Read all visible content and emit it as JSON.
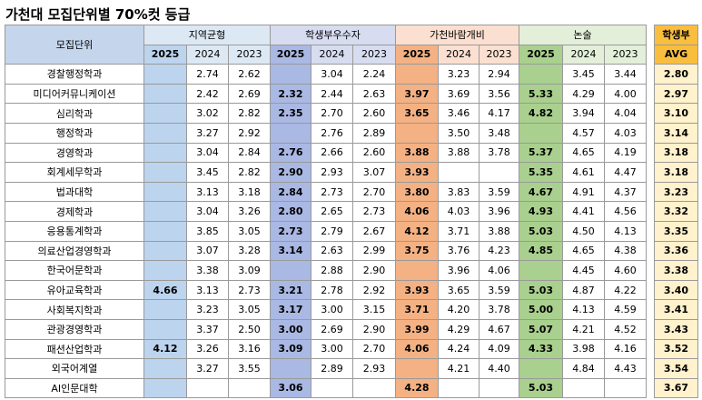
{
  "title": "가천대 모집단위별 70%컷 등급",
  "header": {
    "unit": "모집단위",
    "groups": [
      "지역균형",
      "학생부우수자",
      "가천바람개비",
      "논술"
    ],
    "years": [
      "2025",
      "2024",
      "2023"
    ],
    "avg_line1": "학생부",
    "avg_line2": "AVG"
  },
  "colors": {
    "지역균형": "#bcd4ee",
    "학생부우수자": "#aab8e4",
    "가천바람개비": "#f4b183",
    "논술": "#a9d08e",
    "avg_header": "#f9be3e",
    "avg_cells": "#fff2cc"
  },
  "rows": [
    {
      "name": "경찰행정학과",
      "v": [
        "",
        "2.74",
        "2.62",
        "",
        "3.04",
        "2.24",
        "",
        "3.23",
        "2.94",
        "",
        "3.45",
        "3.44"
      ],
      "avg": "2.80"
    },
    {
      "name": "미디어커뮤니케이션",
      "v": [
        "",
        "2.42",
        "2.69",
        "2.32",
        "2.44",
        "2.63",
        "3.97",
        "3.69",
        "3.56",
        "5.33",
        "4.29",
        "4.00"
      ],
      "avg": "2.97"
    },
    {
      "name": "심리학과",
      "v": [
        "",
        "3.02",
        "2.82",
        "2.35",
        "2.70",
        "2.60",
        "3.65",
        "3.46",
        "4.17",
        "4.82",
        "3.94",
        "4.04"
      ],
      "avg": "3.10"
    },
    {
      "name": "행정학과",
      "v": [
        "",
        "3.27",
        "2.92",
        "",
        "2.76",
        "2.89",
        "",
        "3.50",
        "3.48",
        "",
        "4.57",
        "4.03"
      ],
      "avg": "3.14"
    },
    {
      "name": "경영학과",
      "v": [
        "",
        "3.04",
        "2.84",
        "2.76",
        "2.66",
        "2.60",
        "3.88",
        "3.88",
        "3.78",
        "5.37",
        "4.65",
        "4.19"
      ],
      "avg": "3.18"
    },
    {
      "name": "회계세무학과",
      "v": [
        "",
        "3.45",
        "2.82",
        "2.90",
        "2.93",
        "3.07",
        "3.93",
        "",
        "",
        "5.35",
        "4.61",
        "4.47"
      ],
      "avg": "3.18"
    },
    {
      "name": "법과대학",
      "v": [
        "",
        "3.13",
        "3.18",
        "2.84",
        "2.73",
        "2.70",
        "3.80",
        "3.83",
        "3.59",
        "4.67",
        "4.91",
        "4.37"
      ],
      "avg": "3.23"
    },
    {
      "name": "경제학과",
      "v": [
        "",
        "3.04",
        "3.26",
        "2.80",
        "2.65",
        "2.73",
        "4.06",
        "4.03",
        "3.96",
        "4.93",
        "4.41",
        "4.56"
      ],
      "avg": "3.32"
    },
    {
      "name": "응용통계학과",
      "v": [
        "",
        "3.85",
        "3.05",
        "2.73",
        "2.79",
        "2.67",
        "4.12",
        "3.71",
        "3.88",
        "5.03",
        "4.50",
        "4.13"
      ],
      "avg": "3.35"
    },
    {
      "name": "의료산업경영학과",
      "v": [
        "",
        "3.07",
        "3.28",
        "3.14",
        "2.63",
        "2.99",
        "3.75",
        "3.76",
        "4.23",
        "4.85",
        "4.65",
        "4.38"
      ],
      "avg": "3.36"
    },
    {
      "name": "한국어문학과",
      "v": [
        "",
        "3.38",
        "3.09",
        "",
        "2.88",
        "2.90",
        "",
        "3.96",
        "4.06",
        "",
        "4.45",
        "4.60"
      ],
      "avg": "3.38"
    },
    {
      "name": "유아교육학과",
      "v": [
        "4.66",
        "3.13",
        "2.73",
        "3.21",
        "2.78",
        "2.92",
        "3.93",
        "3.65",
        "3.59",
        "5.03",
        "4.87",
        "4.22"
      ],
      "avg": "3.40"
    },
    {
      "name": "사회복지학과",
      "v": [
        "",
        "3.23",
        "3.05",
        "3.17",
        "3.00",
        "3.15",
        "3.71",
        "4.20",
        "3.78",
        "5.00",
        "4.13",
        "4.59"
      ],
      "avg": "3.41"
    },
    {
      "name": "관광경영학과",
      "v": [
        "",
        "3.37",
        "2.50",
        "3.00",
        "2.69",
        "2.90",
        "3.99",
        "4.29",
        "4.67",
        "5.07",
        "4.21",
        "4.52"
      ],
      "avg": "3.43"
    },
    {
      "name": "패션산업학과",
      "v": [
        "4.12",
        "3.26",
        "3.16",
        "3.09",
        "3.00",
        "2.70",
        "4.06",
        "4.24",
        "4.09",
        "4.33",
        "3.98",
        "4.16"
      ],
      "avg": "3.52"
    },
    {
      "name": "외국어계열",
      "v": [
        "",
        "3.27",
        "3.55",
        "",
        "2.89",
        "2.93",
        "",
        "4.21",
        "4.40",
        "",
        "4.84",
        "4.43"
      ],
      "avg": "3.54"
    },
    {
      "name": "AI인문대학",
      "v": [
        "",
        "",
        "",
        "3.06",
        "",
        "",
        "4.28",
        "",
        "",
        "5.03",
        "",
        ""
      ],
      "avg": "3.67"
    }
  ]
}
